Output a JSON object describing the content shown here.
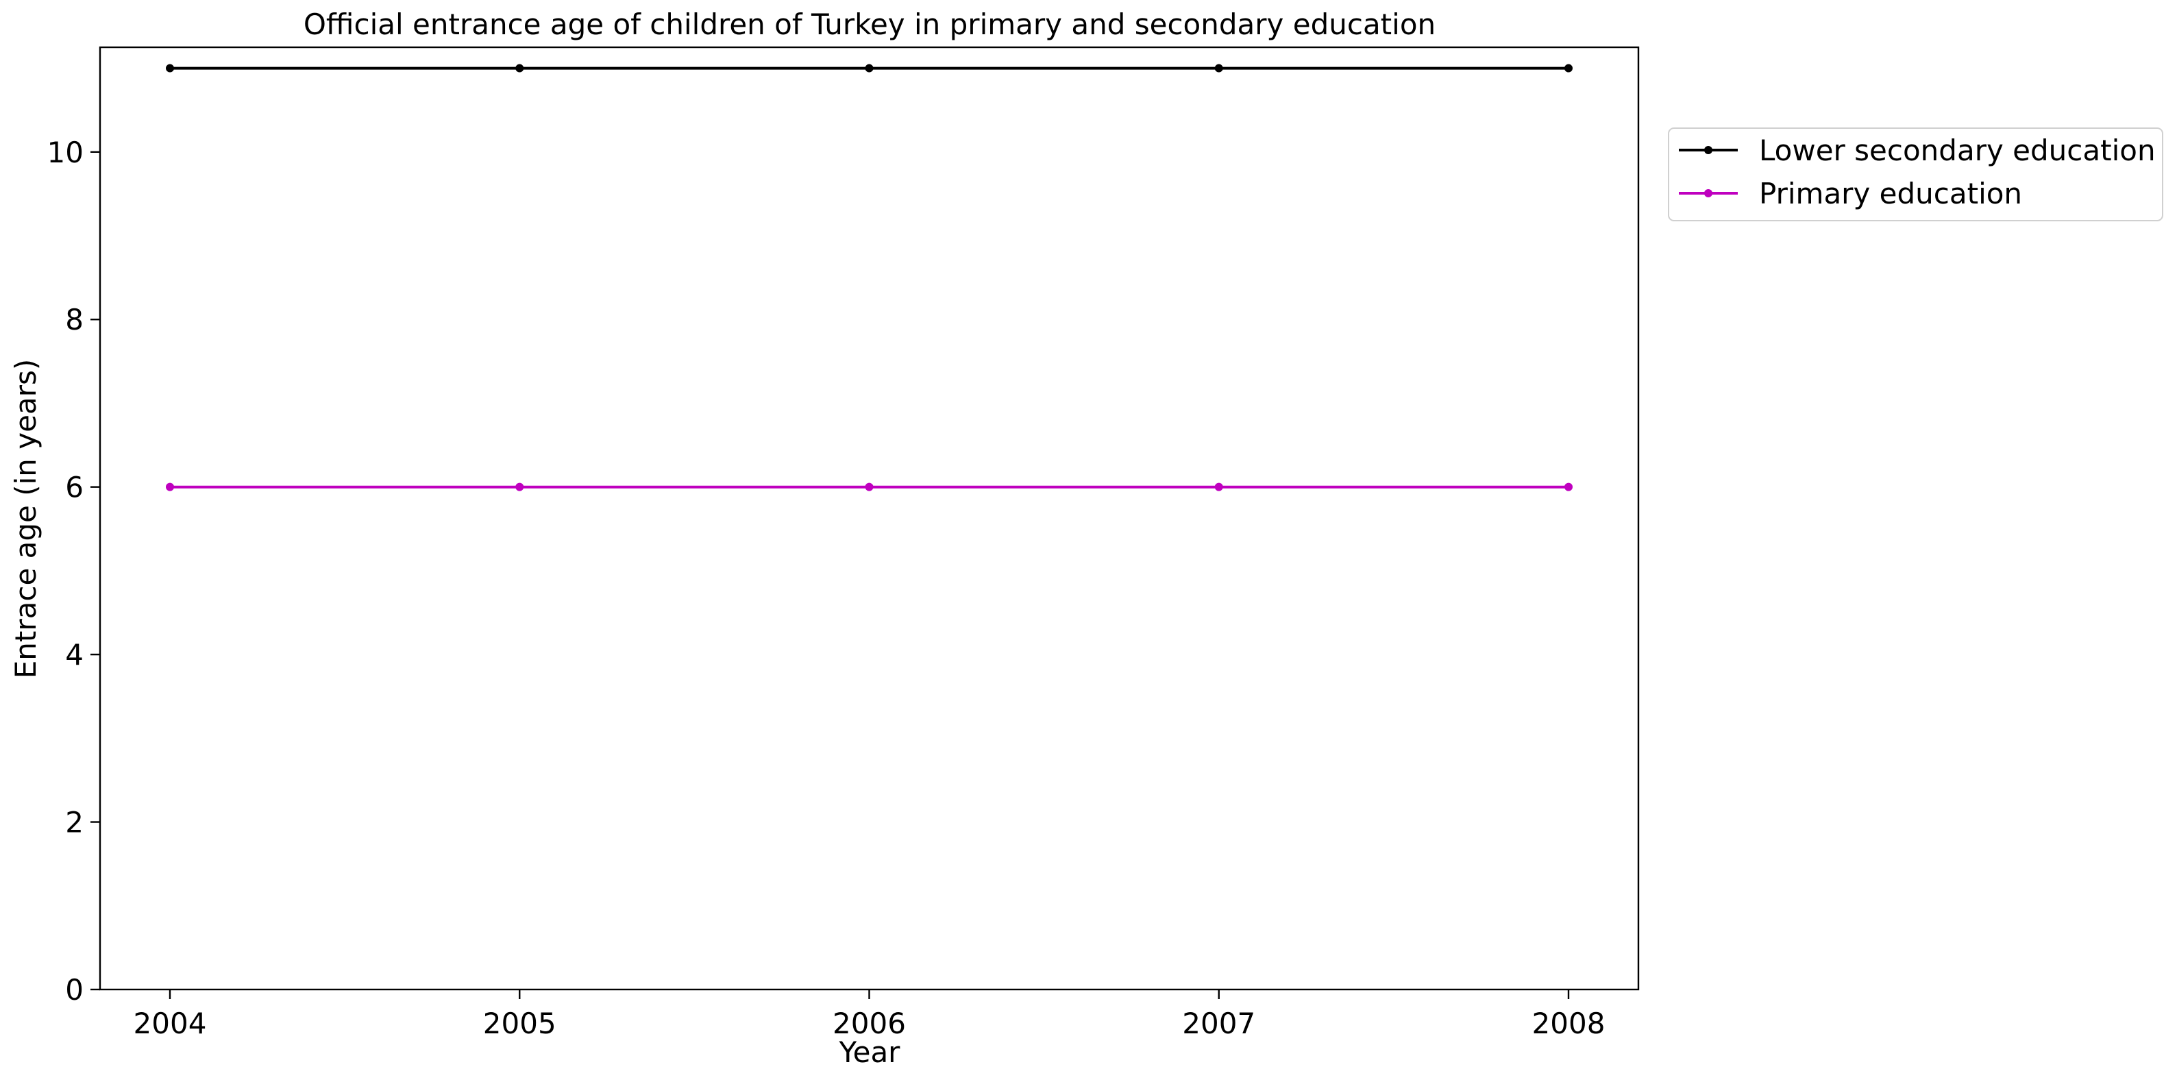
{
  "chart_data": {
    "type": "line",
    "title": "Official entrance age of children of Turkey in primary and secondary education",
    "xlabel": "Year",
    "ylabel": "Entrace age (in  years)",
    "x": [
      2004,
      2005,
      2006,
      2007,
      2008
    ],
    "xticks": [
      "2004",
      "2005",
      "2006",
      "2007",
      "2008"
    ],
    "yticks": [
      "0",
      "2",
      "4",
      "6",
      "8",
      "10"
    ],
    "ylim": [
      0,
      11.25
    ],
    "grid": false,
    "legend_position": "outside-top-right",
    "series": [
      {
        "name": "Lower secondary education",
        "values": [
          11,
          11,
          11,
          11,
          11
        ],
        "color": "#000000"
      },
      {
        "name": "Primary education",
        "values": [
          6,
          6,
          6,
          6,
          6
        ],
        "color": "#bf00bf"
      }
    ]
  }
}
